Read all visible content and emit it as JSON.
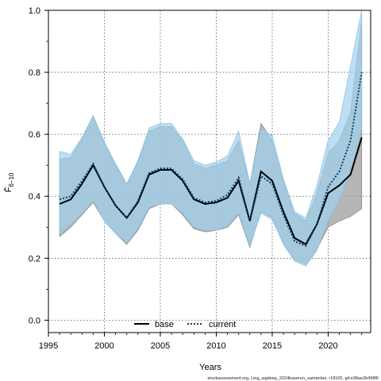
{
  "chart_data": {
    "type": "line",
    "xlabel": "Years",
    "ylabel": "F̄",
    "ylabel_sub": "6−10",
    "xlim": [
      1995,
      2023.8
    ],
    "ylim": [
      -0.04,
      1.0
    ],
    "x_ticks": [
      1995,
      2000,
      2005,
      2010,
      2015,
      2020
    ],
    "y_ticks": [
      "0.0",
      "0.2",
      "0.4",
      "0.6",
      "0.8",
      "1.0"
    ],
    "grid": "dotted",
    "legend_position": "bottom",
    "x": [
      1996,
      1997,
      1998,
      1999,
      2000,
      2001,
      2002,
      2003,
      2004,
      2005,
      2006,
      2007,
      2008,
      2009,
      2010,
      2011,
      2012,
      2013,
      2014,
      2015,
      2016,
      2017,
      2018,
      2019,
      2020,
      2021,
      2022,
      2023
    ],
    "series": [
      {
        "name": "base",
        "color": "#000000",
        "line": "solid",
        "band_color": "#9e9e9e",
        "values": [
          0.375,
          0.39,
          0.44,
          0.5,
          0.43,
          0.37,
          0.33,
          0.38,
          0.47,
          0.485,
          0.485,
          0.45,
          0.39,
          0.375,
          0.38,
          0.395,
          0.45,
          0.32,
          0.48,
          0.45,
          0.35,
          0.265,
          0.245,
          0.31,
          0.41,
          0.435,
          0.47,
          0.59
        ],
        "lower": [
          0.27,
          0.3,
          0.34,
          0.38,
          0.32,
          0.28,
          0.245,
          0.29,
          0.36,
          0.375,
          0.375,
          0.34,
          0.295,
          0.285,
          0.29,
          0.3,
          0.34,
          0.235,
          0.35,
          0.33,
          0.25,
          0.195,
          0.18,
          0.23,
          0.3,
          0.32,
          0.335,
          0.36
        ],
        "upper": [
          0.52,
          0.525,
          0.585,
          0.66,
          0.57,
          0.5,
          0.44,
          0.51,
          0.61,
          0.625,
          0.625,
          0.58,
          0.505,
          0.49,
          0.5,
          0.515,
          0.58,
          0.44,
          0.635,
          0.58,
          0.45,
          0.345,
          0.32,
          0.41,
          0.54,
          0.58,
          0.67,
          0.97
        ]
      },
      {
        "name": "current",
        "color": "#0d3d6b",
        "line": "dotted",
        "band_color": "#9fd2ef",
        "values": [
          0.39,
          0.4,
          0.45,
          0.505,
          0.43,
          0.37,
          0.33,
          0.385,
          0.475,
          0.49,
          0.49,
          0.455,
          0.395,
          0.38,
          0.385,
          0.405,
          0.46,
          0.32,
          0.465,
          0.44,
          0.34,
          0.255,
          0.24,
          0.31,
          0.43,
          0.48,
          0.58,
          0.8
        ],
        "lower": [
          0.28,
          0.31,
          0.345,
          0.385,
          0.32,
          0.28,
          0.25,
          0.295,
          0.365,
          0.375,
          0.375,
          0.345,
          0.3,
          0.29,
          0.29,
          0.305,
          0.345,
          0.24,
          0.345,
          0.325,
          0.245,
          0.19,
          0.175,
          0.225,
          0.325,
          0.39,
          0.48,
          0.62
        ],
        "upper": [
          0.545,
          0.535,
          0.59,
          0.66,
          0.575,
          0.505,
          0.44,
          0.515,
          0.62,
          0.635,
          0.635,
          0.585,
          0.515,
          0.5,
          0.51,
          0.53,
          0.61,
          0.44,
          0.62,
          0.595,
          0.455,
          0.35,
          0.33,
          0.435,
          0.58,
          0.64,
          0.82,
          1.0
        ]
      }
    ]
  },
  "footer": "stockassessment.org, Ling_wgdeep_2024baserun_samanber, r18105, git:e38ae2b498f0"
}
